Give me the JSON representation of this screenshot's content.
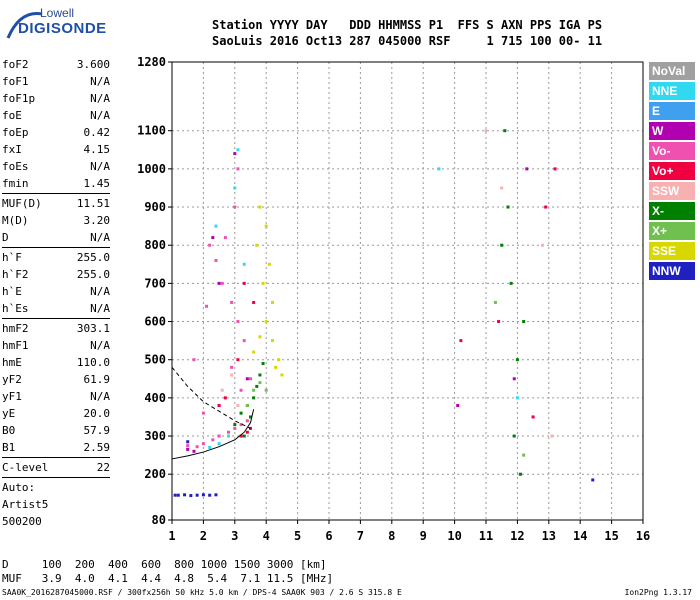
{
  "logo": {
    "line1": "Lowell",
    "line2": "DIGISONDE"
  },
  "header": {
    "labels": [
      "Station",
      "YYYY",
      "DAY",
      "DDD",
      "HHMMSS",
      "P1",
      "FFS",
      "S",
      "AXN",
      "PPS",
      "IGA",
      "PS"
    ],
    "values": [
      "SaoLuis",
      "2016",
      "Oct13",
      "287",
      "045000",
      "RSF",
      "",
      "1",
      "715",
      "100",
      "00-",
      "11"
    ]
  },
  "params": [
    {
      "k": "foF2",
      "v": "3.600"
    },
    {
      "k": "foF1",
      "v": "N/A"
    },
    {
      "k": "foF1p",
      "v": "N/A"
    },
    {
      "k": "foE",
      "v": "N/A"
    },
    {
      "k": "foEp",
      "v": "0.42"
    },
    {
      "k": "fxI",
      "v": "4.15"
    },
    {
      "k": "foEs",
      "v": "N/A"
    },
    {
      "k": "fmin",
      "v": "1.45"
    },
    {
      "sep": true
    },
    {
      "k": "MUF(D)",
      "v": "11.51"
    },
    {
      "k": "M(D)",
      "v": "3.20"
    },
    {
      "k": "D",
      "v": "N/A"
    },
    {
      "sep": true
    },
    {
      "k": "h`F",
      "v": "255.0"
    },
    {
      "k": "h`F2",
      "v": "255.0"
    },
    {
      "k": "h`E",
      "v": "N/A"
    },
    {
      "k": "h`Es",
      "v": "N/A"
    },
    {
      "sep": true
    },
    {
      "k": "hmF2",
      "v": "303.1"
    },
    {
      "k": "hmF1",
      "v": "N/A"
    },
    {
      "k": "hmE",
      "v": "110.0"
    },
    {
      "k": "yF2",
      "v": "61.9"
    },
    {
      "k": "yF1",
      "v": "N/A"
    },
    {
      "k": "yE",
      "v": "20.0"
    },
    {
      "k": "B0",
      "v": "57.9"
    },
    {
      "k": "B1",
      "v": "2.59"
    },
    {
      "sep": true
    },
    {
      "k": "C-level",
      "v": "22"
    },
    {
      "sep": true
    },
    {
      "k": "Auto:",
      "v": ""
    },
    {
      "k": "Artist5",
      "v": ""
    },
    {
      "k": "500200",
      "v": ""
    }
  ],
  "legend": [
    {
      "label": "NoVal",
      "color": "#a0a0a0"
    },
    {
      "label": "NNE",
      "color": "#30d8f0"
    },
    {
      "label": "E",
      "color": "#40a0f0"
    },
    {
      "label": "W",
      "color": "#b000b0"
    },
    {
      "label": "Vo-",
      "color": "#f050b0"
    },
    {
      "label": "Vo+",
      "color": "#f00040"
    },
    {
      "label": "SSW",
      "color": "#f8b0b0"
    },
    {
      "label": "X-",
      "color": "#008000"
    },
    {
      "label": "X+",
      "color": "#70c050"
    },
    {
      "label": "SSE",
      "color": "#d8d800"
    },
    {
      "label": "NNW",
      "color": "#2020c0"
    }
  ],
  "bottom": {
    "row1_label": "D",
    "row1_values": [
      "100",
      "200",
      "400",
      "600",
      "800",
      "1000",
      "1500",
      "3000"
    ],
    "row1_unit": "[km]",
    "row2_label": "MUF",
    "row2_values": [
      "3.9",
      "4.0",
      "4.1",
      "4.4",
      "4.8",
      "5.4",
      "7.1",
      "11.5"
    ],
    "row2_unit": "[MHz]"
  },
  "footer": {
    "left": "SAA0K_2016287045000.RSF / 300fx256h 50 kHz 5.0 km / DPS-4 SAA0K 903 / 2.6 S 315.8 E",
    "right": "Ion2Png 1.3.17"
  },
  "chart_data": {
    "type": "scatter",
    "x_ticks": [
      1,
      2,
      3,
      4,
      5,
      6,
      7,
      8,
      9,
      10,
      11,
      12,
      13,
      14,
      15,
      16
    ],
    "y_ticks": [
      80,
      200,
      300,
      400,
      500,
      600,
      700,
      800,
      900,
      1000,
      1100,
      1280
    ],
    "xlim": [
      1,
      16
    ],
    "ylim": [
      80,
      1280
    ],
    "trace": {
      "name": "F2 trace",
      "color": "#000000",
      "x": [
        1.0,
        1.5,
        2.0,
        2.5,
        3.0,
        3.3,
        3.5,
        3.6
      ],
      "y": [
        240,
        248,
        258,
        272,
        290,
        310,
        335,
        370
      ]
    },
    "profile": {
      "color": "#000000",
      "x": [
        1.0,
        1.5,
        2.0,
        2.5,
        3.0,
        3.5
      ],
      "y": [
        480,
        430,
        390,
        365,
        340,
        320
      ]
    },
    "series": [
      {
        "color": "#f050b0",
        "x": [
          1.5,
          1.8,
          2.0,
          2.3,
          2.5,
          2.8,
          3.0,
          3.2,
          3.4,
          3.1,
          2.9,
          2.6,
          2.2,
          1.7,
          3.3,
          3.5,
          3.0,
          2.7,
          2.4,
          2.1,
          2.9,
          3.2,
          2.5,
          2.0,
          3.1
        ],
        "y": [
          275,
          272,
          280,
          290,
          300,
          310,
          320,
          330,
          340,
          600,
          650,
          700,
          800,
          500,
          550,
          450,
          900,
          820,
          760,
          640,
          480,
          420,
          380,
          360,
          1000
        ]
      },
      {
        "color": "#008000",
        "x": [
          3.0,
          3.2,
          3.4,
          3.6,
          3.7,
          3.8,
          3.9,
          3.5,
          3.3,
          11.6,
          11.7,
          11.8,
          12.0,
          11.9,
          12.1,
          11.5,
          12.2
        ],
        "y": [
          330,
          360,
          380,
          400,
          430,
          460,
          490,
          350,
          300,
          1100,
          900,
          700,
          500,
          300,
          200,
          800,
          600
        ]
      },
      {
        "color": "#d8d800",
        "x": [
          3.6,
          3.8,
          4.0,
          4.2,
          3.9,
          4.1,
          3.7,
          4.3,
          4.5,
          4.0,
          3.8,
          4.2,
          4.4
        ],
        "y": [
          520,
          560,
          600,
          650,
          700,
          750,
          800,
          480,
          460,
          850,
          900,
          550,
          500
        ]
      },
      {
        "color": "#f00040",
        "x": [
          3.2,
          3.4,
          3.5,
          3.3,
          3.6,
          2.7,
          2.5,
          3.1,
          12.5,
          12.9,
          13.2,
          11.4,
          10.2
        ],
        "y": [
          300,
          310,
          320,
          700,
          650,
          400,
          380,
          500,
          350,
          900,
          1000,
          600,
          550
        ]
      },
      {
        "color": "#30d8f0",
        "x": [
          2.2,
          2.5,
          2.8,
          3.0,
          3.1,
          2.4,
          3.3,
          12.0,
          9.5
        ],
        "y": [
          270,
          280,
          300,
          950,
          1050,
          850,
          750,
          400,
          1000
        ]
      },
      {
        "color": "#2020c0",
        "x": [
          1.1,
          1.2,
          1.4,
          1.6,
          1.8,
          2.0,
          2.2,
          2.4,
          1.5,
          14.4
        ],
        "y": [
          145,
          145,
          146,
          144,
          145,
          146,
          145,
          146,
          285,
          185
        ]
      },
      {
        "color": "#b000b0",
        "x": [
          1.5,
          1.7,
          2.5,
          2.3,
          3.4,
          3.0,
          11.9,
          12.3,
          10.1
        ],
        "y": [
          265,
          260,
          700,
          820,
          450,
          1040,
          450,
          1000,
          380
        ]
      },
      {
        "color": "#70c050",
        "x": [
          3.4,
          3.6,
          3.8,
          4.0,
          12.2,
          11.3
        ],
        "y": [
          380,
          420,
          440,
          420,
          250,
          650
        ]
      },
      {
        "color": "#f8b0b0",
        "x": [
          2.6,
          2.9,
          3.1,
          11.0,
          11.5,
          12.8,
          13.1
        ],
        "y": [
          420,
          460,
          380,
          1100,
          950,
          800,
          300
        ]
      }
    ]
  }
}
